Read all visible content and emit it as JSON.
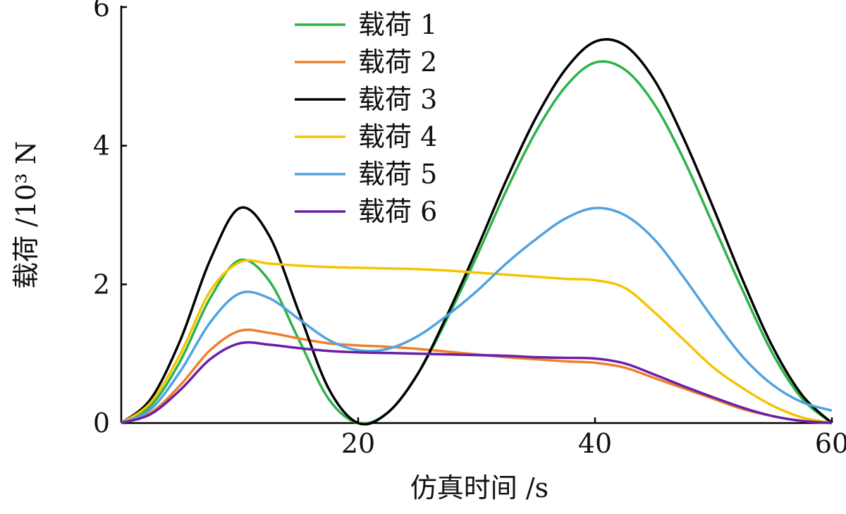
{
  "chart_data": {
    "type": "line",
    "xlabel": "仿真时间 /s",
    "ylabel": "载荷 /10³ N",
    "x": [
      0,
      2.5,
      5,
      7.5,
      10,
      12.5,
      15,
      17.5,
      20,
      22.5,
      25,
      27.5,
      30,
      32.5,
      35,
      37.5,
      40,
      42.5,
      45,
      47.5,
      50,
      52.5,
      55,
      57.5,
      60
    ],
    "xlim": [
      0,
      60
    ],
    "xticks": [
      20,
      40,
      60
    ],
    "ylim": [
      0,
      6
    ],
    "yticks": [
      0,
      2,
      4,
      6
    ],
    "legend": "top-center",
    "series": [
      {
        "name": "载荷 1",
        "color": "#2db34a",
        "values": [
          0,
          0.25,
          0.9,
          1.8,
          2.35,
          2.05,
          1.2,
          0.35,
          0,
          0.15,
          0.7,
          1.5,
          2.4,
          3.35,
          4.2,
          4.85,
          5.2,
          5.1,
          4.6,
          3.8,
          2.85,
          1.9,
          1.0,
          0.35,
          0
        ]
      },
      {
        "name": "载荷 2",
        "color": "#f07f2a",
        "values": [
          0,
          0.15,
          0.55,
          1.05,
          1.33,
          1.3,
          1.22,
          1.15,
          1.12,
          1.1,
          1.07,
          1.03,
          0.99,
          0.95,
          0.92,
          0.89,
          0.87,
          0.8,
          0.65,
          0.5,
          0.35,
          0.2,
          0.1,
          0.03,
          0
        ]
      },
      {
        "name": "载荷 3",
        "color": "#000000",
        "values": [
          0,
          0.35,
          1.2,
          2.35,
          3.1,
          2.7,
          1.6,
          0.5,
          0,
          0.15,
          0.7,
          1.55,
          2.5,
          3.5,
          4.4,
          5.1,
          5.5,
          5.45,
          4.95,
          4.1,
          3.1,
          2.05,
          1.1,
          0.4,
          0
        ]
      },
      {
        "name": "载荷 4",
        "color": "#f5c400",
        "values": [
          0,
          0.3,
          1.0,
          1.9,
          2.32,
          2.3,
          2.27,
          2.25,
          2.24,
          2.23,
          2.22,
          2.2,
          2.17,
          2.14,
          2.11,
          2.08,
          2.06,
          1.95,
          1.6,
          1.2,
          0.8,
          0.5,
          0.25,
          0.08,
          0
        ]
      },
      {
        "name": "载荷 5",
        "color": "#4fa3e0",
        "values": [
          0,
          0.2,
          0.75,
          1.45,
          1.87,
          1.8,
          1.5,
          1.2,
          1.05,
          1.07,
          1.25,
          1.55,
          1.9,
          2.3,
          2.65,
          2.95,
          3.1,
          3.0,
          2.65,
          2.1,
          1.5,
          0.95,
          0.55,
          0.3,
          0.18
        ]
      },
      {
        "name": "载荷 6",
        "color": "#6a1fa8",
        "values": [
          0,
          0.13,
          0.48,
          0.92,
          1.15,
          1.13,
          1.08,
          1.04,
          1.02,
          1.01,
          1.0,
          0.99,
          0.98,
          0.97,
          0.95,
          0.94,
          0.93,
          0.86,
          0.7,
          0.53,
          0.37,
          0.22,
          0.1,
          0.03,
          0
        ]
      }
    ]
  }
}
